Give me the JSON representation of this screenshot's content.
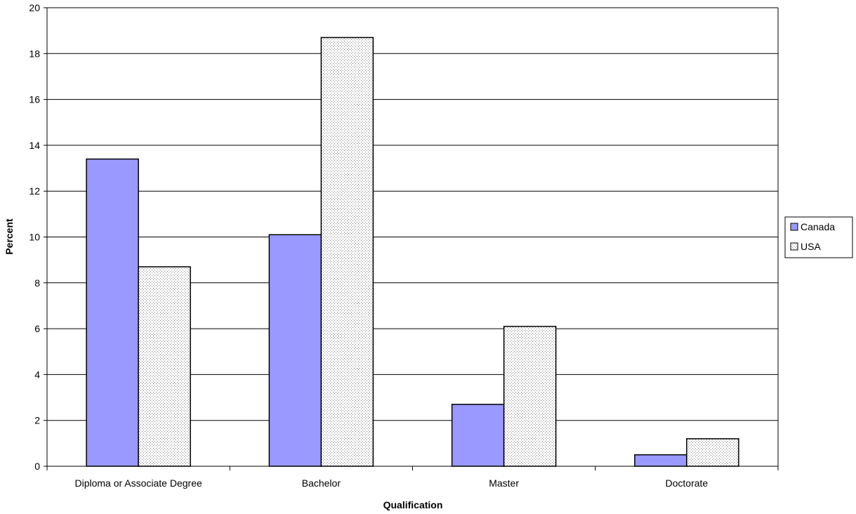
{
  "chart_data": {
    "type": "bar",
    "title": "",
    "xlabel": "Qualification",
    "ylabel": "Percent",
    "categories": [
      "Diploma or Associate Degree",
      "Bachelor",
      "Master",
      "Doctorate"
    ],
    "series": [
      {
        "name": "Canada",
        "values": [
          13.4,
          10.1,
          2.7,
          0.5
        ],
        "color": "#9999ff",
        "pattern": "solid"
      },
      {
        "name": "USA",
        "values": [
          8.7,
          18.7,
          6.1,
          1.2
        ],
        "color": "#ffffff",
        "pattern": "dotted"
      }
    ],
    "ylim": [
      0,
      20
    ],
    "yticks": [
      0,
      2,
      4,
      6,
      8,
      10,
      12,
      14,
      16,
      18,
      20
    ],
    "grid": true,
    "legend": "right"
  }
}
